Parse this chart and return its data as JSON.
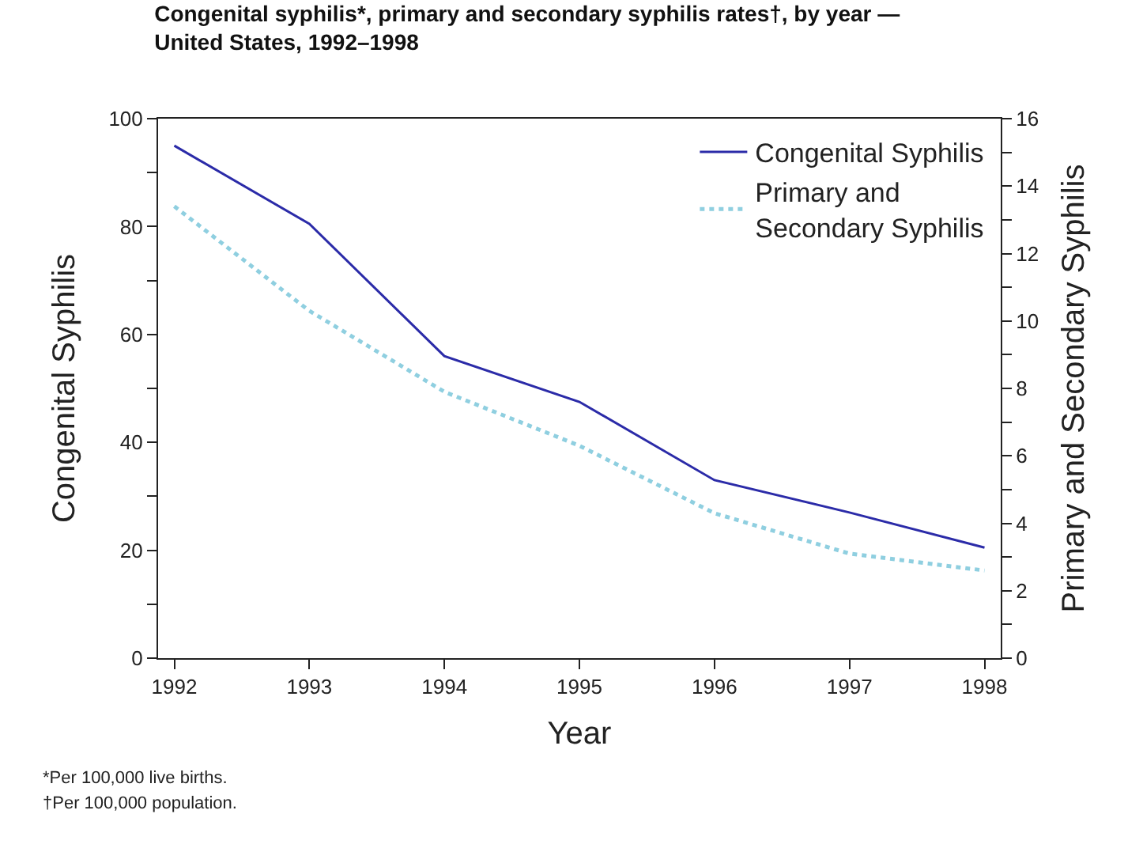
{
  "chart_data": {
    "type": "line",
    "title": "Congenital syphilis*, primary and secondary syphilis rates†, by year —\nUnited States, 1992–1998",
    "xlabel": "Year",
    "ylabel": "Congenital Syphilis",
    "y2label": "Primary and Secondary Syphilis",
    "x": [
      1992,
      1993,
      1994,
      1995,
      1996,
      1997,
      1998
    ],
    "series": [
      {
        "name": "Congenital Syphilis",
        "color": "#2b2ba8",
        "line_style": "solid",
        "values": [
          95,
          80.5,
          56,
          47.5,
          33,
          27,
          20.5
        ]
      },
      {
        "name": "Primary and\nSecondary Syphilis",
        "color": "#8fcfe0",
        "line_style": "dotted",
        "axis": "y2",
        "values": [
          13.4,
          10.3,
          7.9,
          6.3,
          4.3,
          3.1,
          2.6
        ]
      }
    ],
    "xlim": [
      1991.88,
      1998.12
    ],
    "xticks": [
      1992,
      1993,
      1994,
      1995,
      1996,
      1997,
      1998
    ],
    "ylim": [
      0,
      100
    ],
    "yticks": [
      0,
      {
        "value": 10,
        "label": null
      },
      20,
      {
        "value": 30,
        "label": null
      },
      40,
      {
        "value": 50,
        "label": null
      },
      60,
      {
        "value": 70,
        "label": null
      },
      80,
      {
        "value": 90,
        "label": null
      },
      100
    ],
    "y2lim": [
      0,
      16
    ],
    "y2ticks": [
      0,
      {
        "value": 1,
        "label": null
      },
      2,
      {
        "value": 3,
        "label": null
      },
      4,
      {
        "value": 5,
        "label": null
      },
      6,
      {
        "value": 7,
        "label": null
      },
      8,
      {
        "value": 9,
        "label": null
      },
      10,
      {
        "value": 11,
        "label": null
      },
      12,
      {
        "value": 13,
        "label": null
      },
      14,
      {
        "value": 15,
        "label": null
      },
      16
    ],
    "legend": "top right",
    "marker": "none",
    "annotations": [
      "*Per 100,000 live births.",
      "†Per 100,000 population."
    ]
  }
}
